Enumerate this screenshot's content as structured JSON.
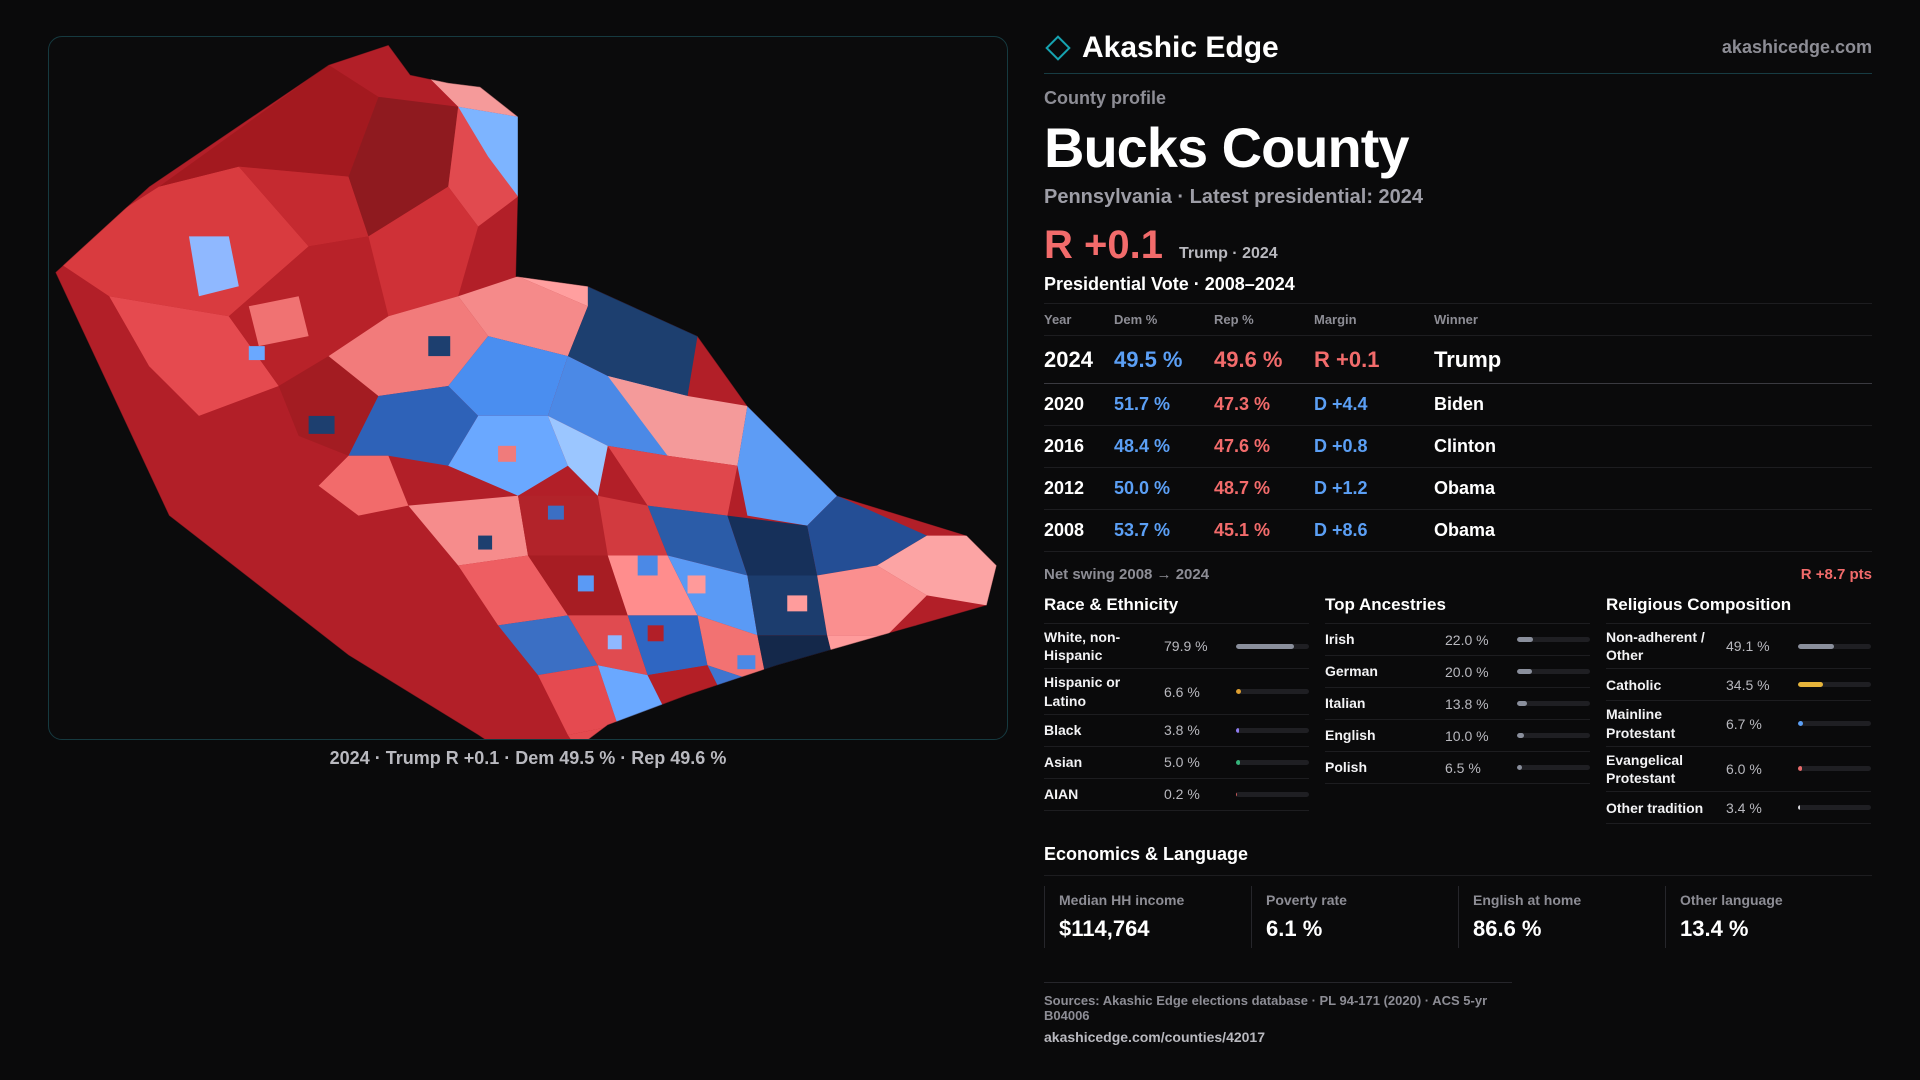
{
  "brand": {
    "name": "Akashic Edge",
    "url": "akashicedge.com"
  },
  "profile": {
    "eyebrow": "County profile",
    "title": "Bucks County",
    "subtitle": "Pennsylvania · Latest presidential: 2024",
    "headline_margin": "R +0.1",
    "headline_note": "Trump · 2024"
  },
  "map": {
    "caption": "2024 · Trump R +0.1 · Dem 49.5 % · Rep 49.6 %"
  },
  "vote": {
    "title": "Presidential Vote · 2008–2024",
    "headers": {
      "year": "Year",
      "dem": "Dem %",
      "rep": "Rep %",
      "margin": "Margin",
      "winner": "Winner"
    },
    "rows": [
      {
        "year": "2024",
        "dem": "49.5 %",
        "rep": "49.6 %",
        "margin": "R +0.1",
        "winner": "Trump",
        "party": "R"
      },
      {
        "year": "2020",
        "dem": "51.7 %",
        "rep": "47.3 %",
        "margin": "D +4.4",
        "winner": "Biden",
        "party": "D"
      },
      {
        "year": "2016",
        "dem": "48.4 %",
        "rep": "47.6 %",
        "margin": "D +0.8",
        "winner": "Clinton",
        "party": "D"
      },
      {
        "year": "2012",
        "dem": "50.0 %",
        "rep": "48.7 %",
        "margin": "D +1.2",
        "winner": "Obama",
        "party": "D"
      },
      {
        "year": "2008",
        "dem": "53.7 %",
        "rep": "45.1 %",
        "margin": "D +8.6",
        "winner": "Obama",
        "party": "D"
      }
    ],
    "net_swing_label": "Net swing 2008 → 2024",
    "net_swing_value": "R +8.7 pts"
  },
  "race": {
    "title": "Race & Ethnicity",
    "items": [
      {
        "label": "White, non-Hispanic",
        "value": "79.9 %",
        "pct": 79.9,
        "color": "#8a8f9c"
      },
      {
        "label": "Hispanic or Latino",
        "value": "6.6 %",
        "pct": 6.6,
        "color": "#e0a030"
      },
      {
        "label": "Black",
        "value": "3.8 %",
        "pct": 3.8,
        "color": "#8f7cf0"
      },
      {
        "label": "Asian",
        "value": "5.0 %",
        "pct": 5.0,
        "color": "#35b47a"
      },
      {
        "label": "AIAN",
        "value": "0.2 %",
        "pct": 0.2,
        "color": "#c85a5a"
      }
    ]
  },
  "ancestry": {
    "title": "Top Ancestries",
    "items": [
      {
        "label": "Irish",
        "value": "22.0 %",
        "pct": 22.0,
        "color": "#8a8f9c"
      },
      {
        "label": "German",
        "value": "20.0 %",
        "pct": 20.0,
        "color": "#8a8f9c"
      },
      {
        "label": "Italian",
        "value": "13.8 %",
        "pct": 13.8,
        "color": "#8a8f9c"
      },
      {
        "label": "English",
        "value": "10.0 %",
        "pct": 10.0,
        "color": "#8a8f9c"
      },
      {
        "label": "Polish",
        "value": "6.5 %",
        "pct": 6.5,
        "color": "#8a8f9c"
      }
    ]
  },
  "religion": {
    "title": "Religious Composition",
    "items": [
      {
        "label": "Non-adherent / Other",
        "value": "49.1 %",
        "pct": 49.1,
        "color": "#8a8f9c"
      },
      {
        "label": "Catholic",
        "value": "34.5 %",
        "pct": 34.5,
        "color": "#e6b43a"
      },
      {
        "label": "Mainline Protestant",
        "value": "6.7 %",
        "pct": 6.7,
        "color": "#5b9ff5"
      },
      {
        "label": "Evangelical Protestant",
        "value": "6.0 %",
        "pct": 6.0,
        "color": "#e86a6a"
      },
      {
        "label": "Other tradition",
        "value": "3.4 %",
        "pct": 3.4,
        "color": "#d8d8dc"
      }
    ]
  },
  "economics": {
    "title": "Economics & Language",
    "cards": [
      {
        "label": "Median HH income",
        "value": "$114,764"
      },
      {
        "label": "Poverty rate",
        "value": "6.1 %"
      },
      {
        "label": "English at home",
        "value": "86.6 %"
      },
      {
        "label": "Other language",
        "value": "13.4 %"
      }
    ]
  },
  "sources": {
    "line1": "Sources: Akashic Edge elections database · PL 94-171 (2020) · ACS 5-yr B04006",
    "line2": "akashicedge.com/counties/42017"
  },
  "colors": {
    "dem": "#5b9ff5",
    "rep": "#f26b6b",
    "accent": "#16a3b0"
  }
}
